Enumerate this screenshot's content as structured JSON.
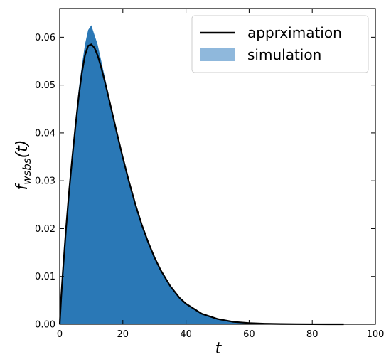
{
  "chart_data": {
    "type": "area",
    "title": "",
    "xlabel": "t",
    "ylabel_main": "f",
    "ylabel_subscript": "wsbs",
    "ylabel_suffix": "(t)",
    "xlim": [
      0,
      100
    ],
    "ylim": [
      0,
      0.066
    ],
    "xticks": [
      0,
      20,
      40,
      60,
      80,
      100
    ],
    "yticks": [
      0.0,
      0.01,
      0.02,
      0.03,
      0.04,
      0.05,
      0.06
    ],
    "ytick_labels": [
      "0.00",
      "0.01",
      "0.02",
      "0.03",
      "0.04",
      "0.05",
      "0.06"
    ],
    "xtick_labels": [
      "0",
      "20",
      "40",
      "60",
      "80",
      "100"
    ],
    "grid": false,
    "legend": {
      "placement": "top-right"
    },
    "series": [
      {
        "name": "apprximation",
        "kind": "line",
        "color": "#000000",
        "x": [
          0,
          0.5,
          1,
          2,
          3,
          4,
          5,
          6,
          7,
          8,
          9,
          10,
          11,
          12,
          13,
          14,
          15,
          16,
          18,
          20,
          22,
          24,
          26,
          28,
          30,
          32,
          35,
          38,
          40,
          45,
          50,
          55,
          60,
          65,
          70,
          75,
          80,
          85,
          90
        ],
        "y": [
          0.0,
          0.006,
          0.011,
          0.02,
          0.028,
          0.035,
          0.0415,
          0.0475,
          0.0525,
          0.0562,
          0.0582,
          0.0585,
          0.0578,
          0.0562,
          0.054,
          0.0515,
          0.0488,
          0.046,
          0.0403,
          0.0348,
          0.0297,
          0.025,
          0.0208,
          0.0172,
          0.014,
          0.0113,
          0.008,
          0.0055,
          0.0043,
          0.0022,
          0.0011,
          0.0005,
          0.00025,
          0.00012,
          6e-05,
          3e-05,
          1e-05,
          0.0,
          0.0
        ]
      },
      {
        "name": "simulation",
        "kind": "histogram",
        "color": "#2a78b6",
        "legend_color": "#8fb8dc",
        "x": [
          0,
          0.5,
          1,
          2,
          3,
          4,
          5,
          6,
          7,
          8,
          9,
          10,
          11,
          12,
          13,
          14,
          15,
          16,
          18,
          20,
          22,
          24,
          26,
          28,
          30,
          32,
          35,
          38,
          40,
          45,
          50,
          55,
          60,
          65,
          70,
          75,
          80,
          85,
          90
        ],
        "y": [
          0.002,
          0.007,
          0.012,
          0.021,
          0.029,
          0.036,
          0.0425,
          0.049,
          0.054,
          0.0585,
          0.0615,
          0.0625,
          0.0605,
          0.0585,
          0.0555,
          0.0525,
          0.0495,
          0.0465,
          0.0408,
          0.0352,
          0.03,
          0.0253,
          0.021,
          0.0174,
          0.0142,
          0.0114,
          0.0081,
          0.0056,
          0.0044,
          0.0023,
          0.0012,
          0.0006,
          0.0003,
          0.00015,
          8e-05,
          4e-05,
          2e-05,
          1e-05,
          0.0
        ]
      }
    ]
  }
}
